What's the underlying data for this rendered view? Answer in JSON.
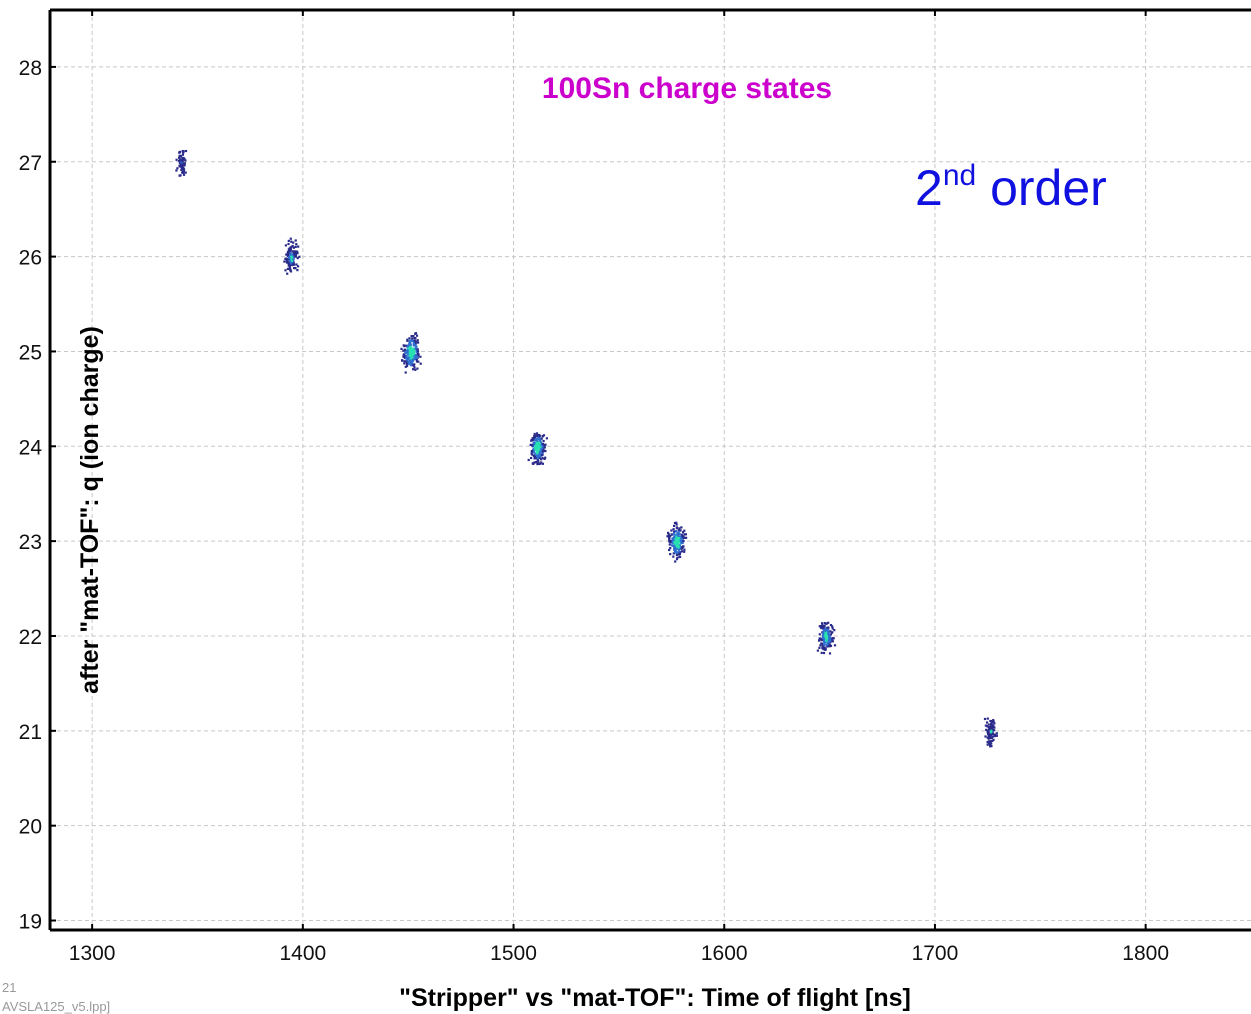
{
  "chart_data": {
    "type": "heatmap",
    "title": "100Sn charge states",
    "xlabel": "\"Stripper\" vs \"mat-TOF\": Time of flight [ns]",
    "ylabel": "after \"mat-TOF\": q (ion charge)",
    "xlim": [
      1280,
      1850
    ],
    "ylim": [
      18.9,
      28.6
    ],
    "x_ticks": [
      "1300",
      "1400",
      "1500",
      "1600",
      "1700",
      "1800"
    ],
    "y_ticks": [
      "19",
      "20",
      "21",
      "22",
      "23",
      "24",
      "25",
      "26",
      "27",
      "28"
    ],
    "grid": true,
    "clusters": [
      {
        "x": 1342,
        "y": 27,
        "intensity": 0.15
      },
      {
        "x": 1394,
        "y": 26,
        "intensity": 0.5
      },
      {
        "x": 1451,
        "y": 25,
        "intensity": 0.9
      },
      {
        "x": 1511,
        "y": 24,
        "intensity": 0.8
      },
      {
        "x": 1577,
        "y": 23,
        "intensity": 0.85
      },
      {
        "x": 1648,
        "y": 22,
        "intensity": 0.7
      },
      {
        "x": 1726,
        "y": 21,
        "intensity": 0.25
      }
    ],
    "annotations": [
      {
        "text": "2",
        "superscript": "nd",
        "suffix": " order"
      }
    ]
  },
  "footer": {
    "page_number": "21",
    "file_label": "AVSLA125_v5.lpp]"
  },
  "colors": {
    "title": "#cc00cc",
    "annotation": "#1010e0",
    "cluster_low": "#2a2a8a",
    "cluster_mid": "#2f6fd0",
    "cluster_high": "#29e0b0"
  }
}
